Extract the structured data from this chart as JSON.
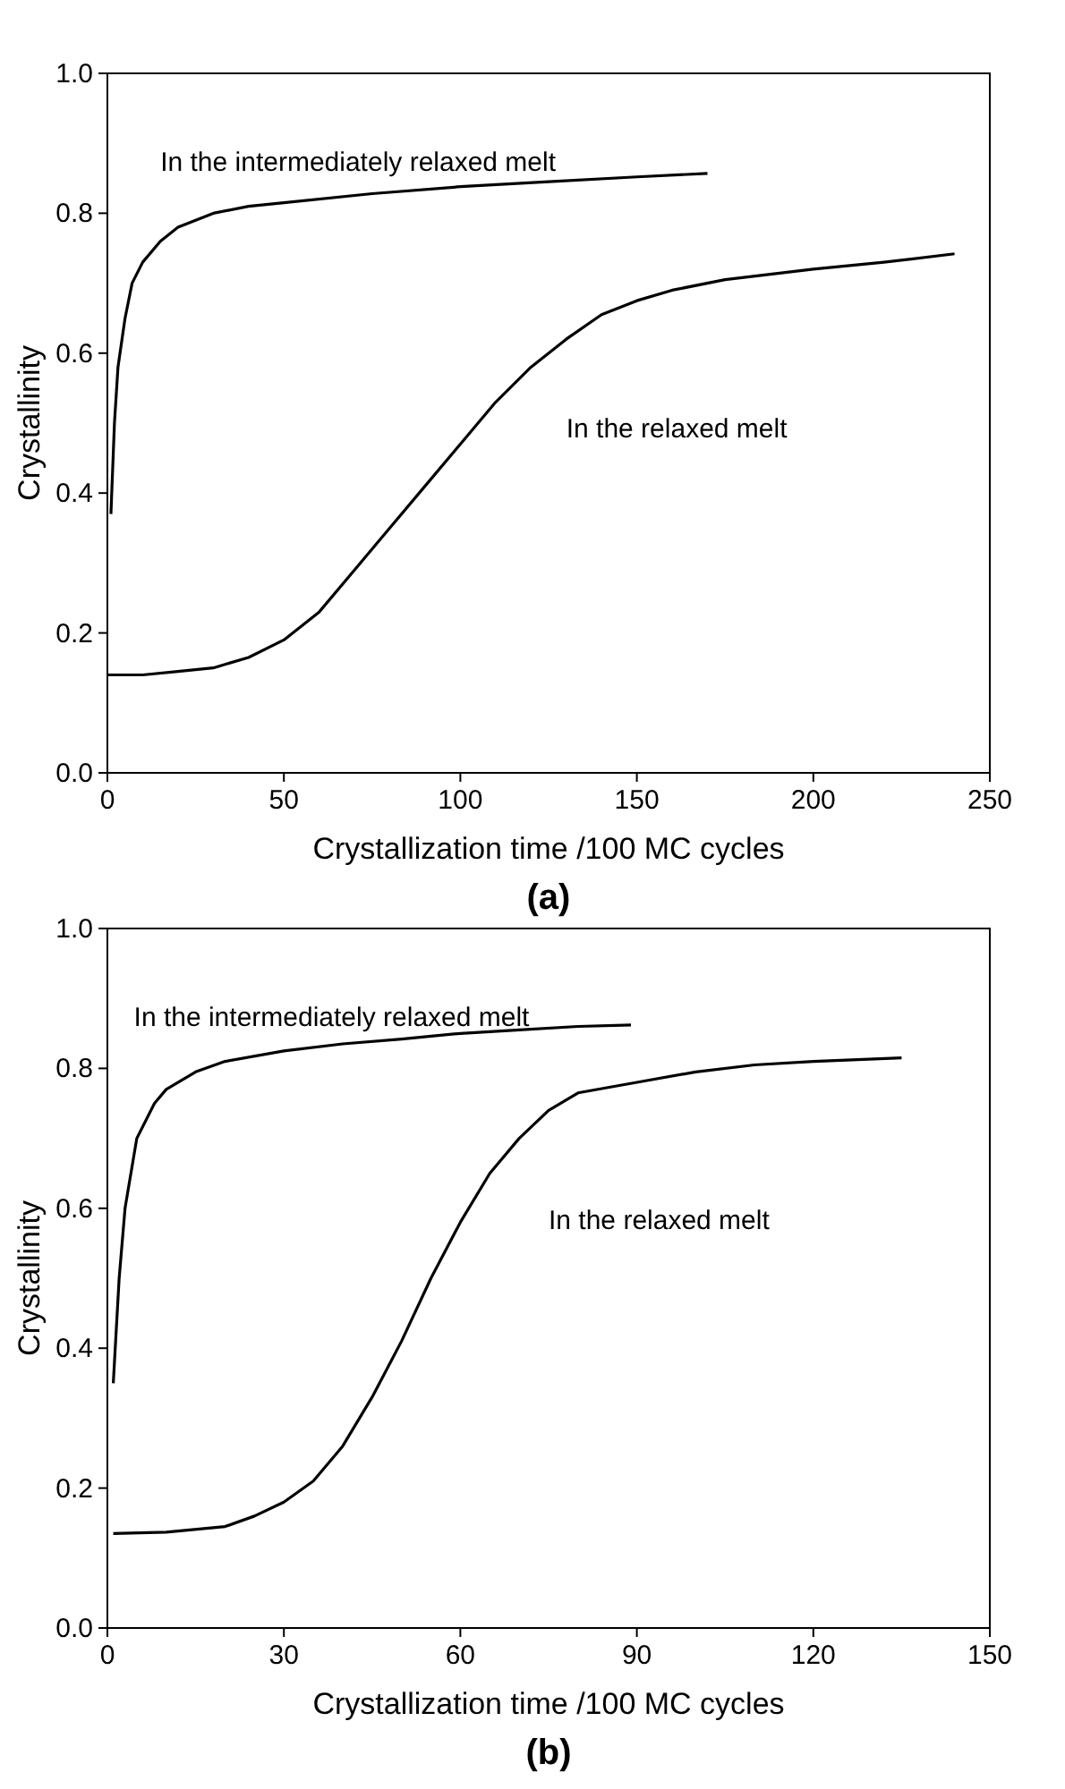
{
  "chart_data": [
    {
      "type": "line",
      "xlabel": "Crystallization time /100 MC cycles",
      "ylabel": "Crystallinity",
      "xlim": [
        0,
        250
      ],
      "xticks": [
        0,
        50,
        100,
        150,
        200,
        250
      ],
      "ylim": [
        0,
        1
      ],
      "yticks": [
        {
          "value": 0,
          "label": "0.0"
        },
        {
          "value": 0.2,
          "label": "0.2"
        },
        {
          "value": 0.4,
          "label": "0.4"
        },
        {
          "value": 0.6,
          "label": "0.6"
        },
        {
          "value": 0.8,
          "label": "0.8"
        },
        {
          "value": 1,
          "label": "1.0"
        }
      ],
      "series": [
        {
          "color": "#000000",
          "x": [
            1,
            2,
            3,
            5,
            7,
            10,
            15,
            20,
            30,
            40,
            50,
            75,
            100,
            125,
            150,
            170
          ],
          "values": [
            0.37,
            0.5,
            0.58,
            0.65,
            0.7,
            0.73,
            0.76,
            0.78,
            0.8,
            0.81,
            0.815,
            0.828,
            0.838,
            0.845,
            0.852,
            0.857
          ]
        },
        {
          "color": "#000000",
          "x": [
            0,
            10,
            20,
            30,
            40,
            50,
            60,
            70,
            80,
            90,
            100,
            110,
            120,
            130,
            140,
            150,
            160,
            175,
            200,
            220,
            240
          ],
          "values": [
            0.14,
            0.14,
            0.145,
            0.15,
            0.165,
            0.19,
            0.23,
            0.29,
            0.35,
            0.41,
            0.47,
            0.53,
            0.58,
            0.62,
            0.655,
            0.675,
            0.69,
            0.705,
            0.72,
            0.73,
            0.742
          ]
        }
      ],
      "annotations": [
        "In the intermediately relaxed melt",
        "In the relaxed melt",
        "(a)"
      ]
    },
    {
      "type": "line",
      "xlabel": "Crystallization time /100 MC cycles",
      "ylabel": "Crystallinity",
      "xlim": [
        0,
        150
      ],
      "xticks": [
        0,
        30,
        60,
        90,
        120,
        150
      ],
      "ylim": [
        0,
        1
      ],
      "yticks": [
        {
          "value": 0,
          "label": "0.0"
        },
        {
          "value": 0.2,
          "label": "0.2"
        },
        {
          "value": 0.4,
          "label": "0.4"
        },
        {
          "value": 0.6,
          "label": "0.6"
        },
        {
          "value": 0.8,
          "label": "0.8"
        },
        {
          "value": 1,
          "label": "1.0"
        }
      ],
      "series": [
        {
          "color": "#000000",
          "x": [
            1,
            2,
            3,
            5,
            8,
            10,
            15,
            20,
            30,
            40,
            50,
            60,
            70,
            80,
            89
          ],
          "values": [
            0.35,
            0.5,
            0.6,
            0.7,
            0.75,
            0.77,
            0.795,
            0.81,
            0.825,
            0.835,
            0.842,
            0.85,
            0.855,
            0.86,
            0.862
          ]
        },
        {
          "color": "#000000",
          "x": [
            1,
            10,
            20,
            25,
            30,
            35,
            40,
            45,
            50,
            55,
            60,
            65,
            70,
            75,
            80,
            90,
            100,
            110,
            120,
            135
          ],
          "values": [
            0.135,
            0.137,
            0.145,
            0.16,
            0.18,
            0.21,
            0.26,
            0.33,
            0.41,
            0.5,
            0.58,
            0.65,
            0.7,
            0.74,
            0.765,
            0.78,
            0.795,
            0.805,
            0.81,
            0.815
          ]
        }
      ],
      "annotations": [
        "In the intermediately relaxed melt",
        "In the relaxed melt",
        "(b)"
      ]
    }
  ]
}
